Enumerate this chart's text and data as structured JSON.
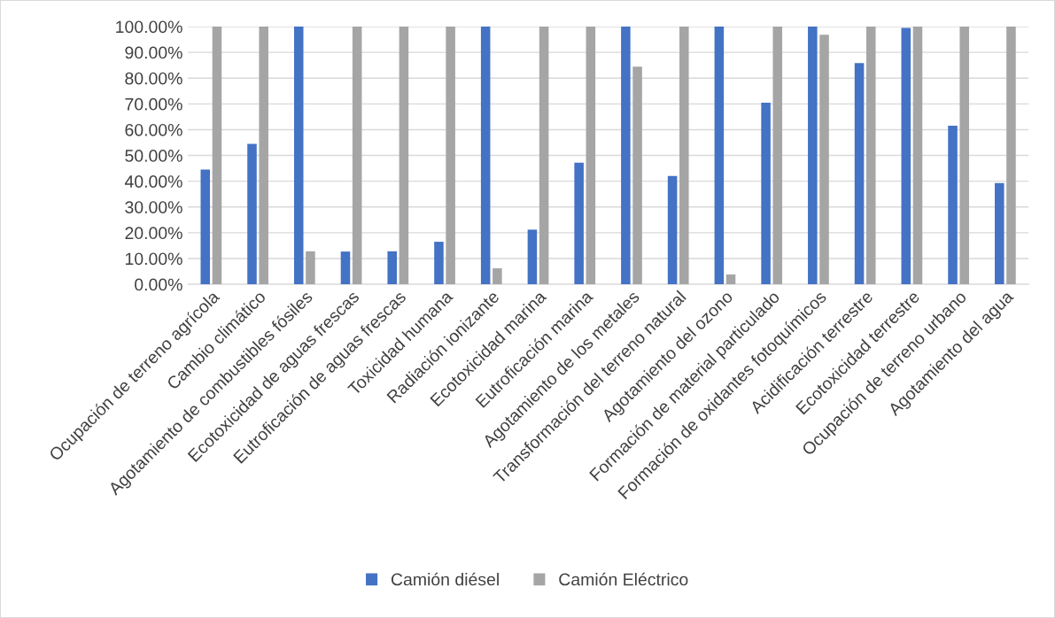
{
  "chart_data": {
    "type": "bar",
    "categories": [
      "Ocupación de terreno agrícola",
      "Cambio climático",
      "Agotamiento de combustibles fósiles",
      "Ecotoxicidad de aguas frescas",
      "Eutroficación de aguas frescas",
      "Toxicidad humana",
      "Radiación ionizante",
      "Ecotoxicidad marina",
      "Eutroficación marina",
      "Agotamiento de los metales",
      "Transformación del terreno natural",
      "Agotamiento del ozono",
      "Formación de material particulado",
      "Formación de oxidantes fotoquímicos",
      "Acidificación terrestre",
      "Ecotoxicidad terrestre",
      "Ocupación de terreno urbano",
      "Agotamiento del agua"
    ],
    "series": [
      {
        "name": "Camión diésel",
        "color": "#4472c4",
        "values": [
          44.5,
          54.5,
          100,
          12.7,
          12.8,
          16.5,
          100,
          21.2,
          47.2,
          100,
          42,
          100,
          70.5,
          100,
          85.8,
          99.5,
          61.5,
          39.3
        ]
      },
      {
        "name": "Camión Eléctrico",
        "color": "#a5a5a5",
        "values": [
          100,
          100,
          12.8,
          100,
          100,
          100,
          6.2,
          100,
          100,
          84.5,
          100,
          3.8,
          100,
          96.8,
          100,
          100,
          100,
          100
        ]
      }
    ],
    "ylim": [
      0,
      100
    ],
    "yticks": [
      {
        "value": 0,
        "label": "0.00%"
      },
      {
        "value": 10,
        "label": "10.00%"
      },
      {
        "value": 20,
        "label": "20.00%"
      },
      {
        "value": 30,
        "label": "30.00%"
      },
      {
        "value": 40,
        "label": "40.00%"
      },
      {
        "value": 50,
        "label": "50.00%"
      },
      {
        "value": 60,
        "label": "60.00%"
      },
      {
        "value": 70,
        "label": "70.00%"
      },
      {
        "value": 80,
        "label": "80.00%"
      },
      {
        "value": 90,
        "label": "90.00%"
      },
      {
        "value": 100,
        "label": "100.00%"
      }
    ],
    "grid": "y",
    "legend": "bottom"
  }
}
